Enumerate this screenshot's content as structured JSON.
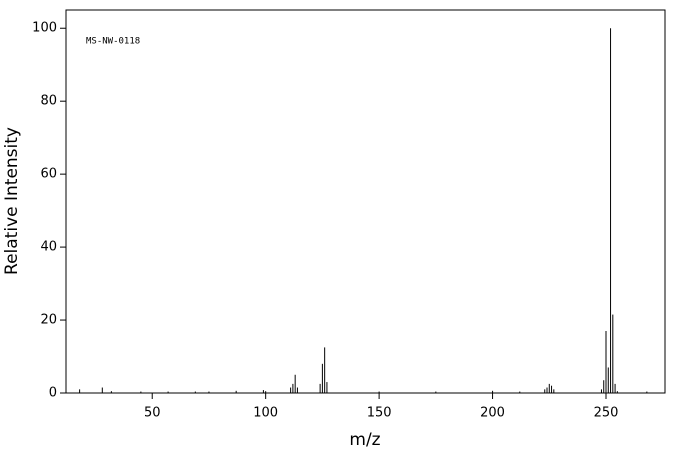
{
  "chart_data": {
    "type": "stem",
    "annotation": "MS-NW-0118",
    "xlabel": "m/z",
    "ylabel": "Relative Intensity",
    "x": [
      18,
      28,
      32,
      45,
      57,
      69,
      75,
      87,
      99,
      100,
      111,
      112,
      113,
      114,
      124,
      125,
      126,
      127,
      150,
      175,
      200,
      212,
      223,
      224,
      225,
      226,
      227,
      248,
      249,
      250,
      251,
      252,
      253,
      254,
      255,
      268
    ],
    "values": [
      1,
      1.5,
      0.5,
      0.4,
      0.4,
      0.4,
      0.4,
      0.6,
      0.8,
      0.5,
      1.5,
      2.5,
      5,
      1.5,
      2.5,
      8,
      12.5,
      3,
      0.4,
      0.4,
      0.6,
      0.4,
      1,
      1.5,
      2.5,
      2,
      1,
      1,
      3.5,
      17,
      7,
      100,
      21.5,
      2.5,
      0.5,
      0.4
    ],
    "color": "#000000",
    "xlim": [
      12,
      276
    ],
    "xticks": [
      50,
      100,
      150,
      200,
      250
    ],
    "ylim": [
      0,
      105
    ],
    "yticks": [
      0,
      20,
      40,
      60,
      80,
      100
    ]
  }
}
